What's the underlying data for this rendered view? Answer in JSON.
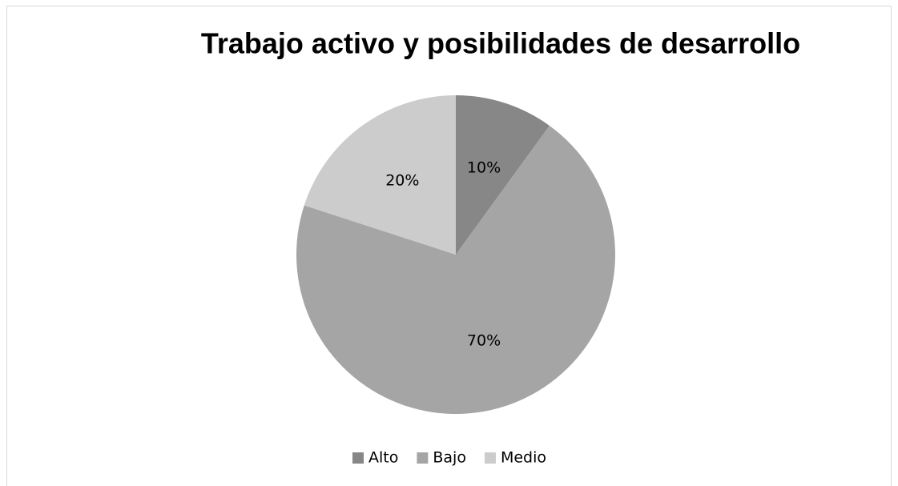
{
  "chart_data": {
    "type": "pie",
    "title": "Trabajo activo y posibilidades de desarrollo",
    "categories": [
      "Alto",
      "Bajo",
      "Medio"
    ],
    "values": [
      10,
      70,
      20
    ],
    "value_labels": [
      "10%",
      "70%",
      "20%"
    ],
    "colors": [
      "#878787",
      "#a5a5a5",
      "#cccccc"
    ],
    "legend": "bottom"
  }
}
